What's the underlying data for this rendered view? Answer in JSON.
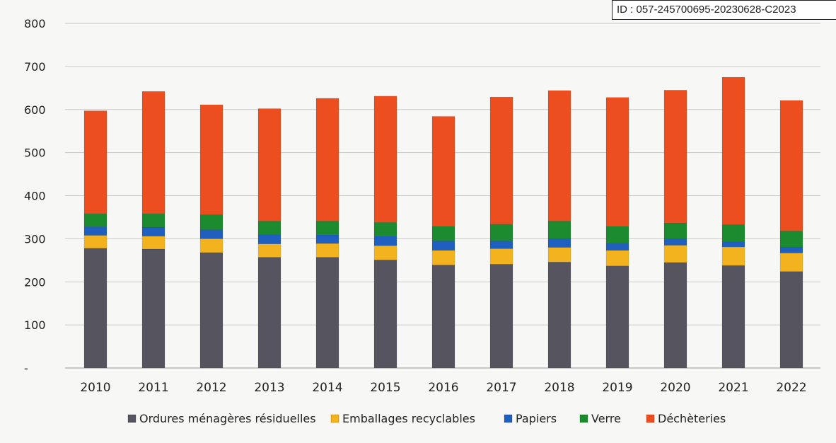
{
  "stamp": {
    "id_text": "ID : 057-245700695-20230628-C2023"
  },
  "chart_data": {
    "type": "bar",
    "stacked": true,
    "categories": [
      "2010",
      "2011",
      "2012",
      "2013",
      "2014",
      "2015",
      "2016",
      "2017",
      "2018",
      "2019",
      "2020",
      "2021",
      "2022"
    ],
    "ylim": [
      0,
      800
    ],
    "yticks": [
      0,
      100,
      200,
      300,
      400,
      500,
      600,
      700,
      800
    ],
    "ytick_labels": [
      "-",
      "100",
      "200",
      "300",
      "400",
      "500",
      "600",
      "700",
      "800"
    ],
    "grid": true,
    "legend_position": "bottom",
    "series": [
      {
        "name": "Ordures ménagères résiduelles",
        "color": "#55545f",
        "values": [
          278,
          276,
          268,
          257,
          257,
          251,
          239,
          241,
          246,
          237,
          245,
          238,
          224
        ]
      },
      {
        "name": "Emballages recyclables",
        "color": "#f2b31f",
        "values": [
          30,
          30,
          32,
          31,
          32,
          33,
          34,
          36,
          34,
          36,
          40,
          43,
          43
        ]
      },
      {
        "name": "Papiers",
        "color": "#1f5fbf",
        "values": [
          20,
          21,
          21,
          22,
          20,
          22,
          22,
          18,
          20,
          16,
          15,
          12,
          13
        ]
      },
      {
        "name": "Verre",
        "color": "#1c8a2e",
        "values": [
          30,
          31,
          35,
          31,
          32,
          32,
          34,
          39,
          41,
          40,
          37,
          40,
          38
        ]
      },
      {
        "name": "Déchèteries",
        "color": "#ec4e20",
        "values": [
          239,
          284,
          255,
          261,
          285,
          293,
          255,
          295,
          303,
          299,
          308,
          342,
          303
        ]
      }
    ]
  }
}
